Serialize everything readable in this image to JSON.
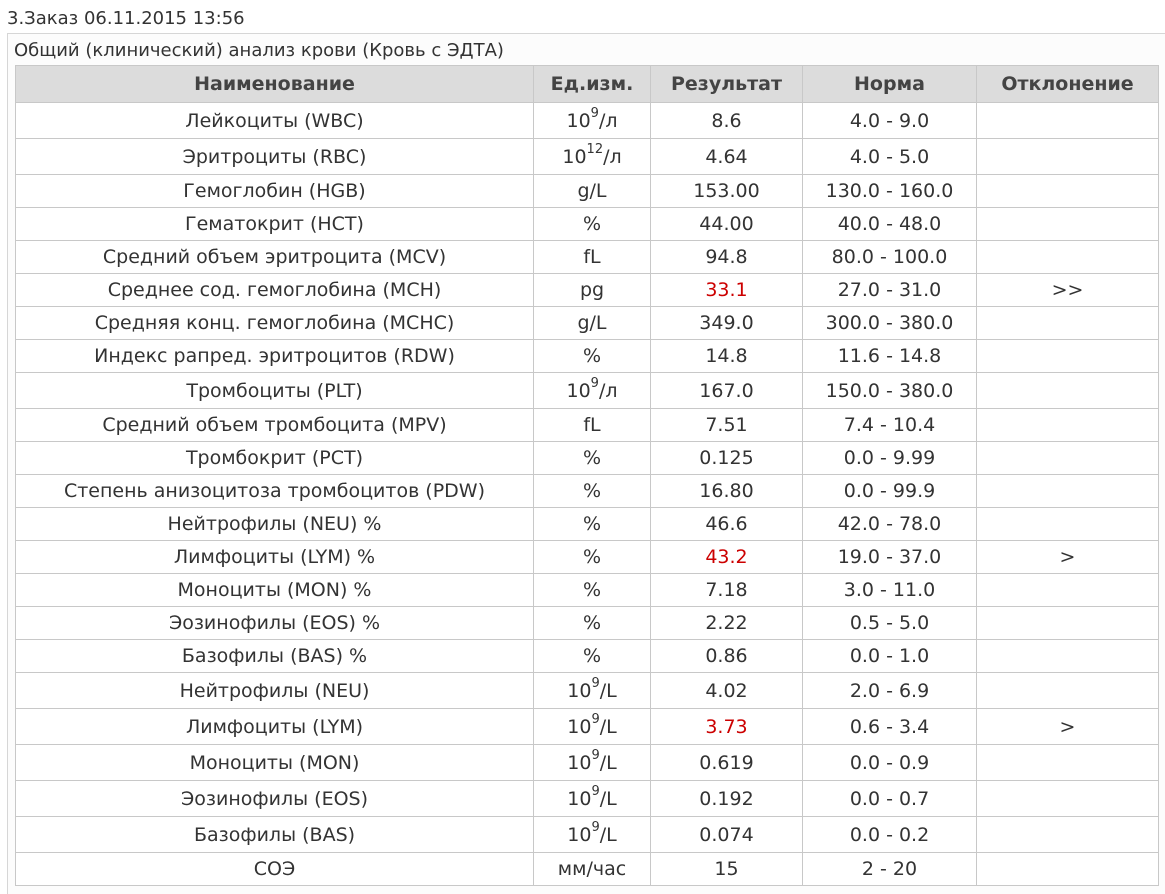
{
  "order": {
    "title": "3.Заказ 06.11.2015 13:56"
  },
  "analysis": {
    "title": "Общий (клинический) анализ крови (Кровь с ЭДТА)"
  },
  "table": {
    "headers": {
      "name": "Наименование",
      "unit": "Ед.изм.",
      "result": "Результат",
      "norm": "Норма",
      "deviation": "Отклонение"
    },
    "rows": [
      {
        "name": "Лейкоциты (WBC)",
        "unit_base": "10",
        "unit_exp": "9",
        "unit_suffix": "/л",
        "result": "8.6",
        "norm": "4.0 - 9.0",
        "deviation": "",
        "flagged": false
      },
      {
        "name": "Эритроциты (RBC)",
        "unit_base": "10",
        "unit_exp": "12",
        "unit_suffix": "/л",
        "result": "4.64",
        "norm": "4.0 - 5.0",
        "deviation": "",
        "flagged": false
      },
      {
        "name": "Гемоглобин (HGB)",
        "unit_base": "g/L",
        "unit_exp": "",
        "unit_suffix": "",
        "result": "153.00",
        "norm": "130.0 - 160.0",
        "deviation": "",
        "flagged": false
      },
      {
        "name": "Гематокрит (HCT)",
        "unit_base": "%",
        "unit_exp": "",
        "unit_suffix": "",
        "result": "44.00",
        "norm": "40.0 - 48.0",
        "deviation": "",
        "flagged": false
      },
      {
        "name": "Средний объем эритроцита (MCV)",
        "unit_base": "fL",
        "unit_exp": "",
        "unit_suffix": "",
        "result": "94.8",
        "norm": "80.0 - 100.0",
        "deviation": "",
        "flagged": false
      },
      {
        "name": "Среднее сод. гемоглобина (MCH)",
        "unit_base": "pg",
        "unit_exp": "",
        "unit_suffix": "",
        "result": "33.1",
        "norm": "27.0 - 31.0",
        "deviation": ">>",
        "flagged": true
      },
      {
        "name": "Средняя конц. гемоглобина (MCHC)",
        "unit_base": "g/L",
        "unit_exp": "",
        "unit_suffix": "",
        "result": "349.0",
        "norm": "300.0 - 380.0",
        "deviation": "",
        "flagged": false
      },
      {
        "name": "Индекс рапред. эритроцитов (RDW)",
        "unit_base": "%",
        "unit_exp": "",
        "unit_suffix": "",
        "result": "14.8",
        "norm": "11.6 - 14.8",
        "deviation": "",
        "flagged": false
      },
      {
        "name": "Тромбоциты (PLT)",
        "unit_base": "10",
        "unit_exp": "9",
        "unit_suffix": "/л",
        "result": "167.0",
        "norm": "150.0 - 380.0",
        "deviation": "",
        "flagged": false
      },
      {
        "name": "Средний объем тромбоцита (MPV)",
        "unit_base": "fL",
        "unit_exp": "",
        "unit_suffix": "",
        "result": "7.51",
        "norm": "7.4 - 10.4",
        "deviation": "",
        "flagged": false
      },
      {
        "name": "Тромбокрит (PCT)",
        "unit_base": "%",
        "unit_exp": "",
        "unit_suffix": "",
        "result": "0.125",
        "norm": "0.0 - 9.99",
        "deviation": "",
        "flagged": false
      },
      {
        "name": "Степень анизоцитоза тромбоцитов (PDW)",
        "unit_base": "%",
        "unit_exp": "",
        "unit_suffix": "",
        "result": "16.80",
        "norm": "0.0 - 99.9",
        "deviation": "",
        "flagged": false
      },
      {
        "name": "Нейтрофилы (NEU) %",
        "unit_base": "%",
        "unit_exp": "",
        "unit_suffix": "",
        "result": "46.6",
        "norm": "42.0 - 78.0",
        "deviation": "",
        "flagged": false
      },
      {
        "name": "Лимфоциты (LYM) %",
        "unit_base": "%",
        "unit_exp": "",
        "unit_suffix": "",
        "result": "43.2",
        "norm": "19.0 - 37.0",
        "deviation": ">",
        "flagged": true
      },
      {
        "name": "Моноциты (MON) %",
        "unit_base": "%",
        "unit_exp": "",
        "unit_suffix": "",
        "result": "7.18",
        "norm": "3.0 - 11.0",
        "deviation": "",
        "flagged": false
      },
      {
        "name": "Эозинофилы (EOS) %",
        "unit_base": "%",
        "unit_exp": "",
        "unit_suffix": "",
        "result": "2.22",
        "norm": "0.5 - 5.0",
        "deviation": "",
        "flagged": false
      },
      {
        "name": "Базофилы (BAS) %",
        "unit_base": "%",
        "unit_exp": "",
        "unit_suffix": "",
        "result": "0.86",
        "norm": "0.0 - 1.0",
        "deviation": "",
        "flagged": false
      },
      {
        "name": "Нейтрофилы (NEU)",
        "unit_base": "10",
        "unit_exp": "9",
        "unit_suffix": "/L",
        "result": "4.02",
        "norm": "2.0 - 6.9",
        "deviation": "",
        "flagged": false
      },
      {
        "name": "Лимфоциты (LYM)",
        "unit_base": "10",
        "unit_exp": "9",
        "unit_suffix": "/L",
        "result": "3.73",
        "norm": "0.6 - 3.4",
        "deviation": ">",
        "flagged": true
      },
      {
        "name": "Моноциты (MON)",
        "unit_base": "10",
        "unit_exp": "9",
        "unit_suffix": "/L",
        "result": "0.619",
        "norm": "0.0 - 0.9",
        "deviation": "",
        "flagged": false
      },
      {
        "name": "Эозинофилы (EOS)",
        "unit_base": "10",
        "unit_exp": "9",
        "unit_suffix": "/L",
        "result": "0.192",
        "norm": "0.0 - 0.7",
        "deviation": "",
        "flagged": false
      },
      {
        "name": "Базофилы (BAS)",
        "unit_base": "10",
        "unit_exp": "9",
        "unit_suffix": "/L",
        "result": "0.074",
        "norm": "0.0 - 0.2",
        "deviation": "",
        "flagged": false
      },
      {
        "name": "СОЭ",
        "unit_base": "мм/час",
        "unit_exp": "",
        "unit_suffix": "",
        "result": "15",
        "norm": "2 - 20",
        "deviation": "",
        "flagged": false
      }
    ]
  },
  "colors": {
    "flagged_result": "#cc0000",
    "header_bg": "#dcdcdc",
    "border": "#c8c8c8"
  }
}
